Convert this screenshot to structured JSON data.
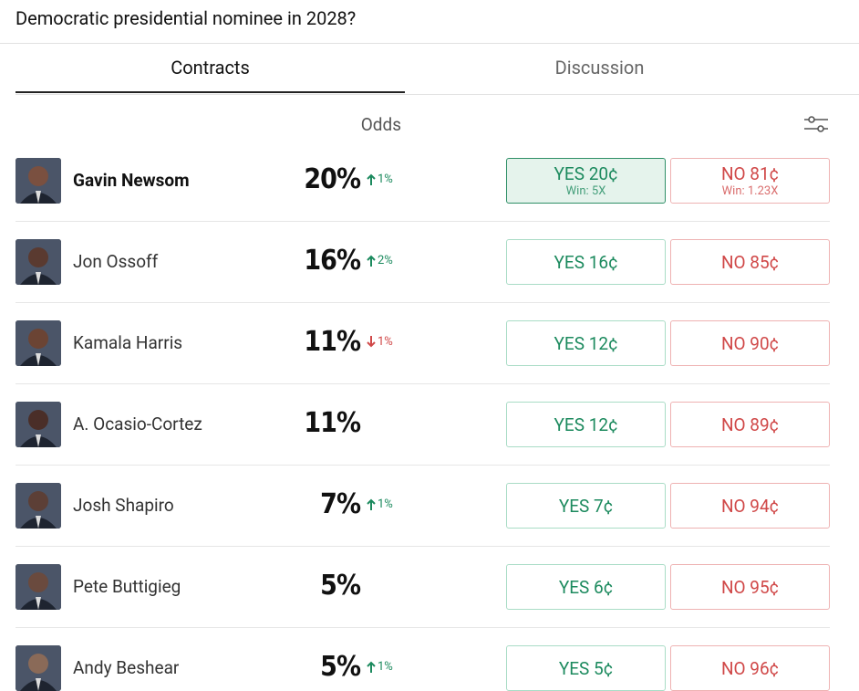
{
  "header": {
    "title": "Democratic presidential nominee in 2028?"
  },
  "tabs": [
    {
      "label": "Contracts",
      "active": true
    },
    {
      "label": "Discussion",
      "active": false
    }
  ],
  "table": {
    "odds_header": "Odds",
    "rows": [
      {
        "name": "Gavin Newsom",
        "odds": "20%",
        "change": {
          "direction": "up",
          "text": "1%"
        },
        "yes": "YES 20¢",
        "no": "NO 81¢",
        "yes_payout": "Win: 5X",
        "no_payout": "Win: 1.23X",
        "selected": true
      },
      {
        "name": "Jon Ossoff",
        "odds": "16%",
        "change": {
          "direction": "up",
          "text": "2%"
        },
        "yes": "YES 16¢",
        "no": "NO 85¢"
      },
      {
        "name": "Kamala Harris",
        "odds": "11%",
        "change": {
          "direction": "down",
          "text": "1%"
        },
        "yes": "YES 12¢",
        "no": "NO 90¢"
      },
      {
        "name": "A. Ocasio-Cortez",
        "odds": "11%",
        "yes": "YES 12¢",
        "no": "NO 89¢"
      },
      {
        "name": "Josh Shapiro",
        "odds": "7%",
        "change": {
          "direction": "up",
          "text": "1%"
        },
        "yes": "YES 7¢",
        "no": "NO 94¢"
      },
      {
        "name": "Pete Buttigieg",
        "odds": "5%",
        "yes": "YES 6¢",
        "no": "NO 95¢"
      },
      {
        "name": "Andy Beshear",
        "odds": "5%",
        "change": {
          "direction": "up",
          "text": "1%"
        },
        "yes": "YES 5¢",
        "no": "NO 96¢"
      }
    ]
  }
}
